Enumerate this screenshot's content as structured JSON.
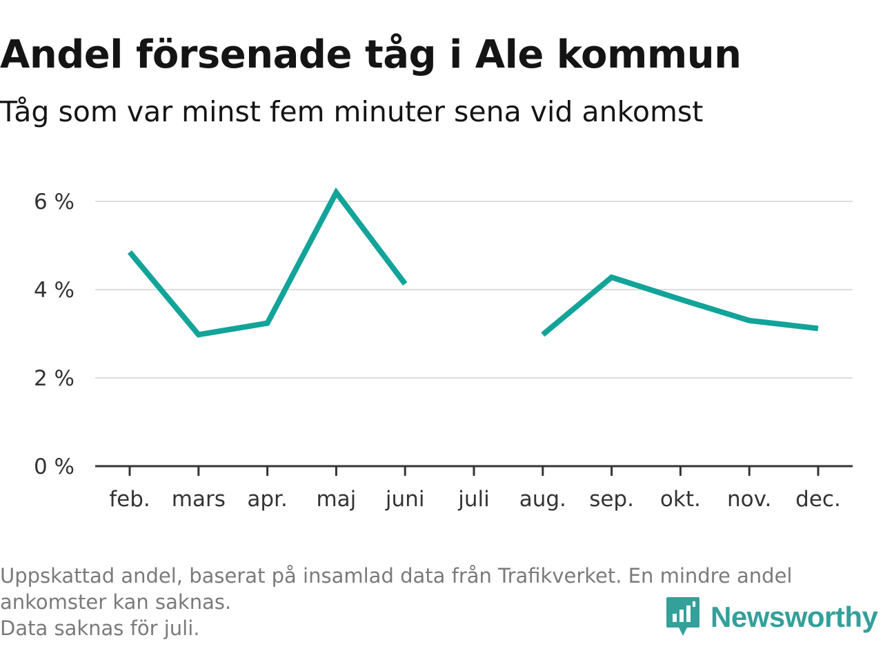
{
  "header": {
    "title": "Andel försenade tåg i Ale kommun",
    "subtitle": "Tåg som var minst fem minuter sena vid ankomst"
  },
  "chart_data": {
    "type": "line",
    "title": "Andel försenade tåg i Ale kommun",
    "subtitle": "Tåg som var minst fem minuter sena vid ankomst",
    "categories": [
      "feb.",
      "mars",
      "apr.",
      "maj",
      "juni",
      "juli",
      "aug.",
      "sep.",
      "okt.",
      "nov.",
      "dec."
    ],
    "series": [
      {
        "values": [
          4.85,
          2.98,
          3.24,
          6.2,
          4.13,
          null,
          2.98,
          4.28,
          3.78,
          3.3,
          3.12
        ]
      }
    ],
    "yticks": [
      0,
      2,
      4,
      6
    ],
    "ytick_labels": [
      "0 %",
      "2 %",
      "4 %",
      "6 %"
    ],
    "ylim": [
      0,
      6
    ],
    "grid": true,
    "line_color": "#12a399",
    "grid_color": "#dddddd",
    "axis_color": "#333333"
  },
  "footer": {
    "note_lines": [
      "Uppskattad andel, baserat på insamlad data från Trafikverket. En mindre andel",
      "ankomster kan saknas.",
      "Data saknas för juli."
    ],
    "brand": "Newsworthy",
    "brand_color": "#33a099",
    "brand_icon": "newsworthy-bar-chart-icon"
  }
}
